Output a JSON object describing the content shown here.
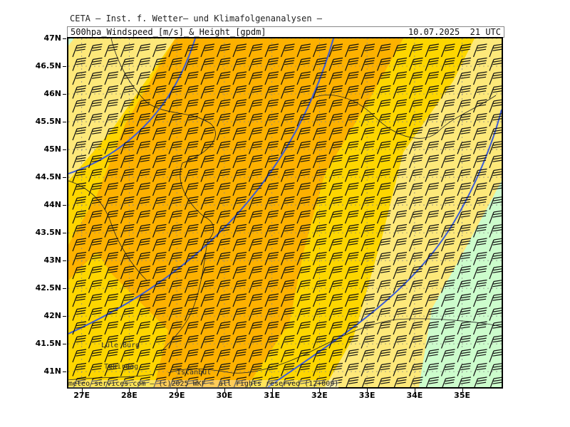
{
  "header": {
    "title": "CETA – Inst. f. Wetter– und Klimafolgenanalysen –",
    "parameter": "500hpa_Windspeed_[m/s]_&_Height_[gpdm]",
    "valid_time": "10.07.2025  21 UTC"
  },
  "map": {
    "lat_labels": [
      "47N",
      "46.5N",
      "46N",
      "45.5N",
      "45N",
      "44.5N",
      "44N",
      "43.5N",
      "43N",
      "42.5N",
      "42N",
      "41.5N",
      "41N"
    ],
    "lon_labels": [
      "27E",
      "28E",
      "29E",
      "30E",
      "31E",
      "32E",
      "33E",
      "34E",
      "35E"
    ],
    "lat_range": [
      40.72,
      47.0
    ],
    "lon_range": [
      26.72,
      35.83
    ],
    "shading_colors": {
      "light_green": "#ccfccc",
      "light_yellow": "#fde87a",
      "yellow": "#fdd600",
      "orange": "#fdb100"
    },
    "contour_color": "#3b5bd6",
    "cities": [
      "Lule Burg",
      "Tekirdag",
      "Istanbul"
    ]
  },
  "footer": {
    "credit": "meteo-services.com – (c)2025 WKF – all rights reserved (12+009)"
  }
}
